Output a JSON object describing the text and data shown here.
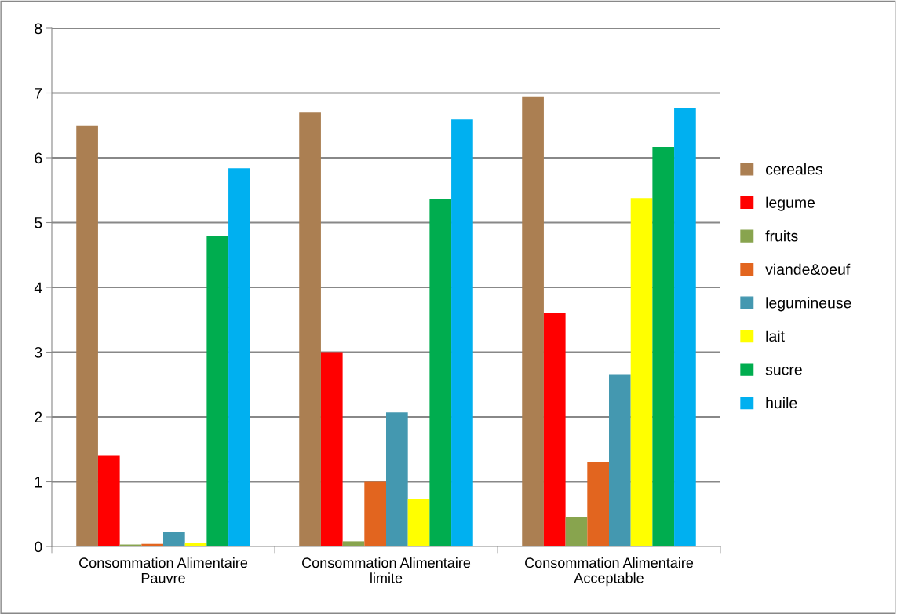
{
  "chart_data": {
    "type": "bar",
    "categories": [
      "Consommation Alimentaire\nPauvre",
      "Consommation Alimentaire\nlimite",
      "Consommation Alimentaire\nAcceptable"
    ],
    "series": [
      {
        "name": "cereales",
        "color": "#ab7f52",
        "values": [
          6.5,
          6.7,
          6.95
        ]
      },
      {
        "name": "legume",
        "color": "#ff0000",
        "values": [
          1.4,
          3.0,
          3.6
        ]
      },
      {
        "name": "fruits",
        "color": "#88a44e",
        "values": [
          0.03,
          0.08,
          0.46
        ]
      },
      {
        "name": "viande&oeuf",
        "color": "#e2651f",
        "values": [
          0.04,
          1.0,
          1.3
        ]
      },
      {
        "name": "legumineuse",
        "color": "#4498b0",
        "values": [
          0.22,
          2.07,
          2.66
        ]
      },
      {
        "name": "lait",
        "color": "#ffff00",
        "values": [
          0.06,
          0.73,
          5.38
        ]
      },
      {
        "name": "sucre",
        "color": "#00ad4f",
        "values": [
          4.8,
          5.37,
          6.17
        ]
      },
      {
        "name": "huile",
        "color": "#00b0f0",
        "values": [
          5.84,
          6.59,
          6.77
        ]
      }
    ],
    "ylim": [
      0,
      8
    ],
    "yticks": [
      0,
      1,
      2,
      3,
      4,
      5,
      6,
      7,
      8
    ],
    "grid": "y",
    "legend": "right"
  }
}
